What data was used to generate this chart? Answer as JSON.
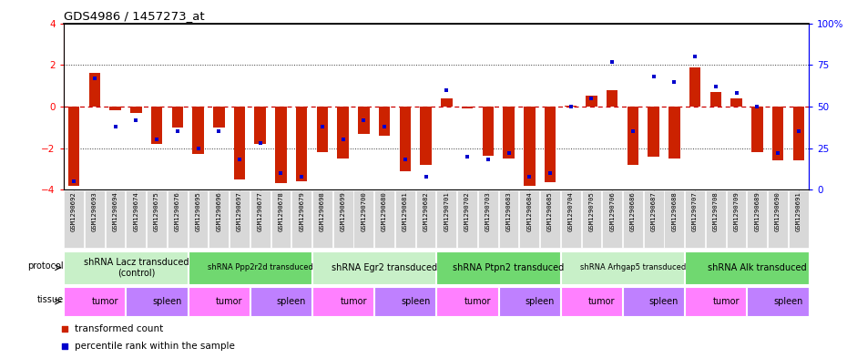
{
  "title": "GDS4986 / 1457273_at",
  "samples": [
    "GSM1290692",
    "GSM1290693",
    "GSM1290694",
    "GSM1290674",
    "GSM1290675",
    "GSM1290676",
    "GSM1290695",
    "GSM1290696",
    "GSM1290697",
    "GSM1290677",
    "GSM1290678",
    "GSM1290679",
    "GSM1290698",
    "GSM1290699",
    "GSM1290700",
    "GSM1290680",
    "GSM1290681",
    "GSM1290682",
    "GSM1290701",
    "GSM1290702",
    "GSM1290703",
    "GSM1290683",
    "GSM1290684",
    "GSM1290685",
    "GSM1290704",
    "GSM1290705",
    "GSM1290706",
    "GSM1290686",
    "GSM1290687",
    "GSM1290688",
    "GSM1290707",
    "GSM1290708",
    "GSM1290709",
    "GSM1290689",
    "GSM1290690",
    "GSM1290691"
  ],
  "transformed_count": [
    -3.8,
    1.6,
    -0.2,
    -0.3,
    -1.8,
    -1.0,
    -2.3,
    -1.0,
    -3.5,
    -1.8,
    -3.7,
    -3.6,
    -2.2,
    -2.5,
    -1.3,
    -1.4,
    -3.1,
    -2.8,
    0.4,
    -0.1,
    -2.35,
    -2.5,
    -3.8,
    -3.65,
    0.05,
    0.5,
    0.8,
    -2.8,
    -2.4,
    -2.5,
    1.9,
    0.7,
    0.4,
    -2.2,
    -2.6,
    -2.6
  ],
  "percentile_rank": [
    5,
    67,
    38,
    42,
    30,
    35,
    25,
    35,
    18,
    28,
    10,
    8,
    38,
    30,
    42,
    38,
    18,
    8,
    60,
    20,
    18,
    22,
    8,
    10,
    50,
    55,
    77,
    35,
    68,
    65,
    80,
    62,
    58,
    50,
    22,
    35
  ],
  "protocols": [
    {
      "label": "shRNA Lacz transduced\n(control)",
      "start": 0,
      "end": 6,
      "color": "#c8f0c8",
      "fontsize": 7
    },
    {
      "label": "shRNA Ppp2r2d transduced",
      "start": 6,
      "end": 12,
      "color": "#70d870",
      "fontsize": 6
    },
    {
      "label": "shRNA Egr2 transduced",
      "start": 12,
      "end": 18,
      "color": "#c8f0c8",
      "fontsize": 7
    },
    {
      "label": "shRNA Ptpn2 transduced",
      "start": 18,
      "end": 24,
      "color": "#70d870",
      "fontsize": 7
    },
    {
      "label": "shRNA Arhgap5 transduced",
      "start": 24,
      "end": 30,
      "color": "#c8f0c8",
      "fontsize": 6
    },
    {
      "label": "shRNA Alk transduced",
      "start": 30,
      "end": 36,
      "color": "#70d870",
      "fontsize": 7
    }
  ],
  "tissues": [
    {
      "label": "tumor",
      "start": 0,
      "end": 3,
      "color": "#ff80ff"
    },
    {
      "label": "spleen",
      "start": 3,
      "end": 6,
      "color": "#bf80ff"
    },
    {
      "label": "tumor",
      "start": 6,
      "end": 9,
      "color": "#ff80ff"
    },
    {
      "label": "spleen",
      "start": 9,
      "end": 12,
      "color": "#bf80ff"
    },
    {
      "label": "tumor",
      "start": 12,
      "end": 15,
      "color": "#ff80ff"
    },
    {
      "label": "spleen",
      "start": 15,
      "end": 18,
      "color": "#bf80ff"
    },
    {
      "label": "tumor",
      "start": 18,
      "end": 21,
      "color": "#ff80ff"
    },
    {
      "label": "spleen",
      "start": 21,
      "end": 24,
      "color": "#bf80ff"
    },
    {
      "label": "tumor",
      "start": 24,
      "end": 27,
      "color": "#ff80ff"
    },
    {
      "label": "spleen",
      "start": 27,
      "end": 30,
      "color": "#bf80ff"
    },
    {
      "label": "tumor",
      "start": 30,
      "end": 33,
      "color": "#ff80ff"
    },
    {
      "label": "spleen",
      "start": 33,
      "end": 36,
      "color": "#bf80ff"
    }
  ],
  "ylim": [
    -4,
    4
  ],
  "y2lim": [
    0,
    100
  ],
  "bar_color": "#cc2200",
  "dot_color": "#0000cc",
  "hline_red_color": "#cc0000",
  "grid_dot_color": "#333333",
  "xticklabel_bg": "#d8d8d8"
}
